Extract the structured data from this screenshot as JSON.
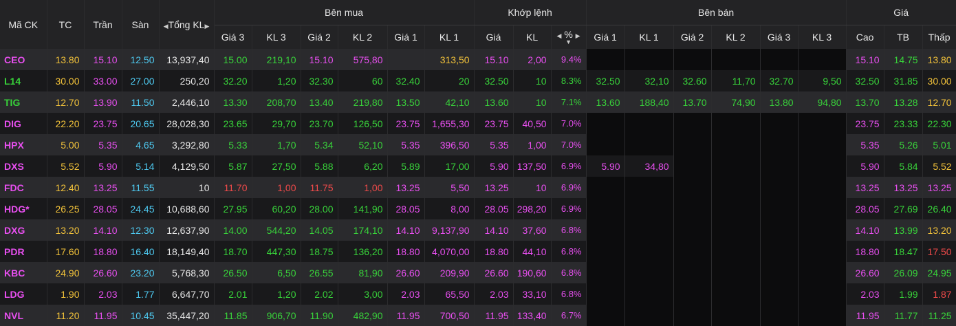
{
  "headers": {
    "symbol": "Mã CK",
    "ref": "TC",
    "ceil": "Trần",
    "floor": "Sàn",
    "total_vol": "Tổng KL",
    "buy_group": "Bên mua",
    "match_group": "Khớp lệnh",
    "sell_group": "Bên bán",
    "price_group": "Giá",
    "buy_cols": [
      "Giá 3",
      "KL 3",
      "Giá 2",
      "KL 2",
      "Giá 1",
      "KL 1"
    ],
    "match_cols": [
      "Giá",
      "KL",
      "%"
    ],
    "sell_cols": [
      "Giá 1",
      "KL 1",
      "Giá 2",
      "KL 2",
      "Giá 3",
      "KL 3"
    ],
    "price_cols": [
      "Cao",
      "TB",
      "Thấp"
    ]
  },
  "colors": {
    "up": "#38d23a",
    "ceiling": "#e84ff0",
    "reference": "#f2c23a",
    "floor": "#4ec9f0",
    "down": "#f04a4a"
  },
  "rows": [
    {
      "sym": [
        "CEO",
        "c"
      ],
      "tc": [
        "13.80",
        "r"
      ],
      "tran": [
        "15.10",
        "c"
      ],
      "san": [
        "12.50",
        "f"
      ],
      "tkl": [
        "13,937,40",
        "w"
      ],
      "b": [
        [
          "15.00",
          "u"
        ],
        [
          "219,10",
          "u"
        ],
        [
          "15.10",
          "c"
        ],
        [
          "575,80",
          "c"
        ],
        [
          "",
          ""
        ],
        [
          "313,50",
          "r"
        ]
      ],
      "m": [
        [
          "15.10",
          "c"
        ],
        [
          "2,00",
          "c"
        ],
        [
          "9.4%",
          "c"
        ]
      ],
      "s": [
        [
          "",
          ""
        ],
        [
          "",
          ""
        ],
        [
          "",
          ""
        ],
        [
          "",
          ""
        ],
        [
          "",
          ""
        ],
        [
          "",
          ""
        ]
      ],
      "p": [
        [
          "15.10",
          "c"
        ],
        [
          "14.75",
          "u"
        ],
        [
          "13.80",
          "r"
        ]
      ]
    },
    {
      "sym": [
        "L14",
        "u"
      ],
      "tc": [
        "30.00",
        "r"
      ],
      "tran": [
        "33.00",
        "c"
      ],
      "san": [
        "27.00",
        "f"
      ],
      "tkl": [
        "250,20",
        "w"
      ],
      "b": [
        [
          "32.20",
          "u"
        ],
        [
          "1,20",
          "u"
        ],
        [
          "32.30",
          "u"
        ],
        [
          "60",
          "u"
        ],
        [
          "32.40",
          "u"
        ],
        [
          "20",
          "u"
        ]
      ],
      "m": [
        [
          "32.50",
          "u"
        ],
        [
          "10",
          "u"
        ],
        [
          "8.3%",
          "u"
        ]
      ],
      "s": [
        [
          "32.50",
          "u"
        ],
        [
          "32,10",
          "u"
        ],
        [
          "32.60",
          "u"
        ],
        [
          "11,70",
          "u"
        ],
        [
          "32.70",
          "u"
        ],
        [
          "9,50",
          "u"
        ]
      ],
      "p": [
        [
          "32.50",
          "u"
        ],
        [
          "31.85",
          "u"
        ],
        [
          "30.00",
          "r"
        ]
      ]
    },
    {
      "sym": [
        "TIG",
        "u"
      ],
      "tc": [
        "12.70",
        "r"
      ],
      "tran": [
        "13.90",
        "c"
      ],
      "san": [
        "11.50",
        "f"
      ],
      "tkl": [
        "2,446,10",
        "w"
      ],
      "b": [
        [
          "13.30",
          "u"
        ],
        [
          "208,70",
          "u"
        ],
        [
          "13.40",
          "u"
        ],
        [
          "219,80",
          "u"
        ],
        [
          "13.50",
          "u"
        ],
        [
          "42,10",
          "u"
        ]
      ],
      "m": [
        [
          "13.60",
          "u"
        ],
        [
          "10",
          "u"
        ],
        [
          "7.1%",
          "u"
        ]
      ],
      "s": [
        [
          "13.60",
          "u"
        ],
        [
          "188,40",
          "u"
        ],
        [
          "13.70",
          "u"
        ],
        [
          "74,90",
          "u"
        ],
        [
          "13.80",
          "u"
        ],
        [
          "94,80",
          "u"
        ]
      ],
      "p": [
        [
          "13.70",
          "u"
        ],
        [
          "13.28",
          "u"
        ],
        [
          "12.70",
          "r"
        ]
      ]
    },
    {
      "sym": [
        "DIG",
        "c"
      ],
      "tc": [
        "22.20",
        "r"
      ],
      "tran": [
        "23.75",
        "c"
      ],
      "san": [
        "20.65",
        "f"
      ],
      "tkl": [
        "28,028,30",
        "w"
      ],
      "b": [
        [
          "23.65",
          "u"
        ],
        [
          "29,70",
          "u"
        ],
        [
          "23.70",
          "u"
        ],
        [
          "126,50",
          "u"
        ],
        [
          "23.75",
          "c"
        ],
        [
          "1,655,30",
          "c"
        ]
      ],
      "m": [
        [
          "23.75",
          "c"
        ],
        [
          "40,50",
          "c"
        ],
        [
          "7.0%",
          "c"
        ]
      ],
      "s": [
        [
          "",
          ""
        ],
        [
          "",
          ""
        ],
        [
          "",
          ""
        ],
        [
          "",
          ""
        ],
        [
          "",
          ""
        ],
        [
          "",
          ""
        ]
      ],
      "p": [
        [
          "23.75",
          "c"
        ],
        [
          "23.33",
          "u"
        ],
        [
          "22.30",
          "u"
        ]
      ]
    },
    {
      "sym": [
        "HPX",
        "c"
      ],
      "tc": [
        "5.00",
        "r"
      ],
      "tran": [
        "5.35",
        "c"
      ],
      "san": [
        "4.65",
        "f"
      ],
      "tkl": [
        "3,292,80",
        "w"
      ],
      "b": [
        [
          "5.33",
          "u"
        ],
        [
          "1,70",
          "u"
        ],
        [
          "5.34",
          "u"
        ],
        [
          "52,10",
          "u"
        ],
        [
          "5.35",
          "c"
        ],
        [
          "396,50",
          "c"
        ]
      ],
      "m": [
        [
          "5.35",
          "c"
        ],
        [
          "1,00",
          "c"
        ],
        [
          "7.0%",
          "c"
        ]
      ],
      "s": [
        [
          "",
          ""
        ],
        [
          "",
          ""
        ],
        [
          "",
          ""
        ],
        [
          "",
          ""
        ],
        [
          "",
          ""
        ],
        [
          "",
          ""
        ]
      ],
      "p": [
        [
          "5.35",
          "c"
        ],
        [
          "5.26",
          "u"
        ],
        [
          "5.01",
          "u"
        ]
      ]
    },
    {
      "sym": [
        "DXS",
        "c"
      ],
      "tc": [
        "5.52",
        "r"
      ],
      "tran": [
        "5.90",
        "c"
      ],
      "san": [
        "5.14",
        "f"
      ],
      "tkl": [
        "4,129,50",
        "w"
      ],
      "b": [
        [
          "5.87",
          "u"
        ],
        [
          "27,50",
          "u"
        ],
        [
          "5.88",
          "u"
        ],
        [
          "6,20",
          "u"
        ],
        [
          "5.89",
          "u"
        ],
        [
          "17,00",
          "u"
        ]
      ],
      "m": [
        [
          "5.90",
          "c"
        ],
        [
          "137,50",
          "c"
        ],
        [
          "6.9%",
          "c"
        ]
      ],
      "s": [
        [
          "5.90",
          "c"
        ],
        [
          "34,80",
          "c"
        ],
        [
          "",
          ""
        ],
        [
          "",
          ""
        ],
        [
          "",
          ""
        ],
        [
          "",
          ""
        ]
      ],
      "p": [
        [
          "5.90",
          "c"
        ],
        [
          "5.84",
          "u"
        ],
        [
          "5.52",
          "r"
        ]
      ]
    },
    {
      "sym": [
        "FDC",
        "c"
      ],
      "tc": [
        "12.40",
        "r"
      ],
      "tran": [
        "13.25",
        "c"
      ],
      "san": [
        "11.55",
        "f"
      ],
      "tkl": [
        "10",
        "w"
      ],
      "b": [
        [
          "11.70",
          "d"
        ],
        [
          "1,00",
          "d"
        ],
        [
          "11.75",
          "d"
        ],
        [
          "1,00",
          "d"
        ],
        [
          "13.25",
          "c"
        ],
        [
          "5,50",
          "c"
        ]
      ],
      "m": [
        [
          "13.25",
          "c"
        ],
        [
          "10",
          "c"
        ],
        [
          "6.9%",
          "c"
        ]
      ],
      "s": [
        [
          "",
          ""
        ],
        [
          "",
          ""
        ],
        [
          "",
          ""
        ],
        [
          "",
          ""
        ],
        [
          "",
          ""
        ],
        [
          "",
          ""
        ]
      ],
      "p": [
        [
          "13.25",
          "c"
        ],
        [
          "13.25",
          "c"
        ],
        [
          "13.25",
          "c"
        ]
      ]
    },
    {
      "sym": [
        "HDG*",
        "c"
      ],
      "tc": [
        "26.25",
        "r"
      ],
      "tran": [
        "28.05",
        "c"
      ],
      "san": [
        "24.45",
        "f"
      ],
      "tkl": [
        "10,688,60",
        "w"
      ],
      "b": [
        [
          "27.95",
          "u"
        ],
        [
          "60,20",
          "u"
        ],
        [
          "28.00",
          "u"
        ],
        [
          "141,90",
          "u"
        ],
        [
          "28.05",
          "c"
        ],
        [
          "8,00",
          "c"
        ]
      ],
      "m": [
        [
          "28.05",
          "c"
        ],
        [
          "298,20",
          "c"
        ],
        [
          "6.9%",
          "c"
        ]
      ],
      "s": [
        [
          "",
          ""
        ],
        [
          "",
          ""
        ],
        [
          "",
          ""
        ],
        [
          "",
          ""
        ],
        [
          "",
          ""
        ],
        [
          "",
          ""
        ]
      ],
      "p": [
        [
          "28.05",
          "c"
        ],
        [
          "27.69",
          "u"
        ],
        [
          "26.40",
          "u"
        ]
      ]
    },
    {
      "sym": [
        "DXG",
        "c"
      ],
      "tc": [
        "13.20",
        "r"
      ],
      "tran": [
        "14.10",
        "c"
      ],
      "san": [
        "12.30",
        "f"
      ],
      "tkl": [
        "12,637,90",
        "w"
      ],
      "b": [
        [
          "14.00",
          "u"
        ],
        [
          "544,20",
          "u"
        ],
        [
          "14.05",
          "u"
        ],
        [
          "174,10",
          "u"
        ],
        [
          "14.10",
          "c"
        ],
        [
          "9,137,90",
          "c"
        ]
      ],
      "m": [
        [
          "14.10",
          "c"
        ],
        [
          "37,60",
          "c"
        ],
        [
          "6.8%",
          "c"
        ]
      ],
      "s": [
        [
          "",
          ""
        ],
        [
          "",
          ""
        ],
        [
          "",
          ""
        ],
        [
          "",
          ""
        ],
        [
          "",
          ""
        ],
        [
          "",
          ""
        ]
      ],
      "p": [
        [
          "14.10",
          "c"
        ],
        [
          "13.99",
          "u"
        ],
        [
          "13.20",
          "r"
        ]
      ]
    },
    {
      "sym": [
        "PDR",
        "c"
      ],
      "tc": [
        "17.60",
        "r"
      ],
      "tran": [
        "18.80",
        "c"
      ],
      "san": [
        "16.40",
        "f"
      ],
      "tkl": [
        "18,149,40",
        "w"
      ],
      "b": [
        [
          "18.70",
          "u"
        ],
        [
          "447,30",
          "u"
        ],
        [
          "18.75",
          "u"
        ],
        [
          "136,20",
          "u"
        ],
        [
          "18.80",
          "c"
        ],
        [
          "4,070,00",
          "c"
        ]
      ],
      "m": [
        [
          "18.80",
          "c"
        ],
        [
          "44,10",
          "c"
        ],
        [
          "6.8%",
          "c"
        ]
      ],
      "s": [
        [
          "",
          ""
        ],
        [
          "",
          ""
        ],
        [
          "",
          ""
        ],
        [
          "",
          ""
        ],
        [
          "",
          ""
        ],
        [
          "",
          ""
        ]
      ],
      "p": [
        [
          "18.80",
          "c"
        ],
        [
          "18.47",
          "u"
        ],
        [
          "17.50",
          "d"
        ]
      ]
    },
    {
      "sym": [
        "KBC",
        "c"
      ],
      "tc": [
        "24.90",
        "r"
      ],
      "tran": [
        "26.60",
        "c"
      ],
      "san": [
        "23.20",
        "f"
      ],
      "tkl": [
        "5,768,30",
        "w"
      ],
      "b": [
        [
          "26.50",
          "u"
        ],
        [
          "6,50",
          "u"
        ],
        [
          "26.55",
          "u"
        ],
        [
          "81,90",
          "u"
        ],
        [
          "26.60",
          "c"
        ],
        [
          "209,90",
          "c"
        ]
      ],
      "m": [
        [
          "26.60",
          "c"
        ],
        [
          "190,60",
          "c"
        ],
        [
          "6.8%",
          "c"
        ]
      ],
      "s": [
        [
          "",
          ""
        ],
        [
          "",
          ""
        ],
        [
          "",
          ""
        ],
        [
          "",
          ""
        ],
        [
          "",
          ""
        ],
        [
          "",
          ""
        ]
      ],
      "p": [
        [
          "26.60",
          "c"
        ],
        [
          "26.09",
          "u"
        ],
        [
          "24.95",
          "u"
        ]
      ]
    },
    {
      "sym": [
        "LDG",
        "c"
      ],
      "tc": [
        "1.90",
        "r"
      ],
      "tran": [
        "2.03",
        "c"
      ],
      "san": [
        "1.77",
        "f"
      ],
      "tkl": [
        "6,647,70",
        "w"
      ],
      "b": [
        [
          "2.01",
          "u"
        ],
        [
          "1,20",
          "u"
        ],
        [
          "2.02",
          "u"
        ],
        [
          "3,00",
          "u"
        ],
        [
          "2.03",
          "c"
        ],
        [
          "65,50",
          "c"
        ]
      ],
      "m": [
        [
          "2.03",
          "c"
        ],
        [
          "33,10",
          "c"
        ],
        [
          "6.8%",
          "c"
        ]
      ],
      "s": [
        [
          "",
          ""
        ],
        [
          "",
          ""
        ],
        [
          "",
          ""
        ],
        [
          "",
          ""
        ],
        [
          "",
          ""
        ],
        [
          "",
          ""
        ]
      ],
      "p": [
        [
          "2.03",
          "c"
        ],
        [
          "1.99",
          "u"
        ],
        [
          "1.87",
          "d"
        ]
      ]
    },
    {
      "sym": [
        "NVL",
        "c"
      ],
      "tc": [
        "11.20",
        "r"
      ],
      "tran": [
        "11.95",
        "c"
      ],
      "san": [
        "10.45",
        "f"
      ],
      "tkl": [
        "35,447,20",
        "w"
      ],
      "b": [
        [
          "11.85",
          "u"
        ],
        [
          "906,70",
          "u"
        ],
        [
          "11.90",
          "u"
        ],
        [
          "482,90",
          "u"
        ],
        [
          "11.95",
          "c"
        ],
        [
          "700,50",
          "c"
        ]
      ],
      "m": [
        [
          "11.95",
          "c"
        ],
        [
          "133,40",
          "c"
        ],
        [
          "6.7%",
          "c"
        ]
      ],
      "s": [
        [
          "",
          ""
        ],
        [
          "",
          ""
        ],
        [
          "",
          ""
        ],
        [
          "",
          ""
        ],
        [
          "",
          ""
        ],
        [
          "",
          ""
        ]
      ],
      "p": [
        [
          "11.95",
          "c"
        ],
        [
          "11.77",
          "u"
        ],
        [
          "11.25",
          "u"
        ]
      ]
    }
  ]
}
